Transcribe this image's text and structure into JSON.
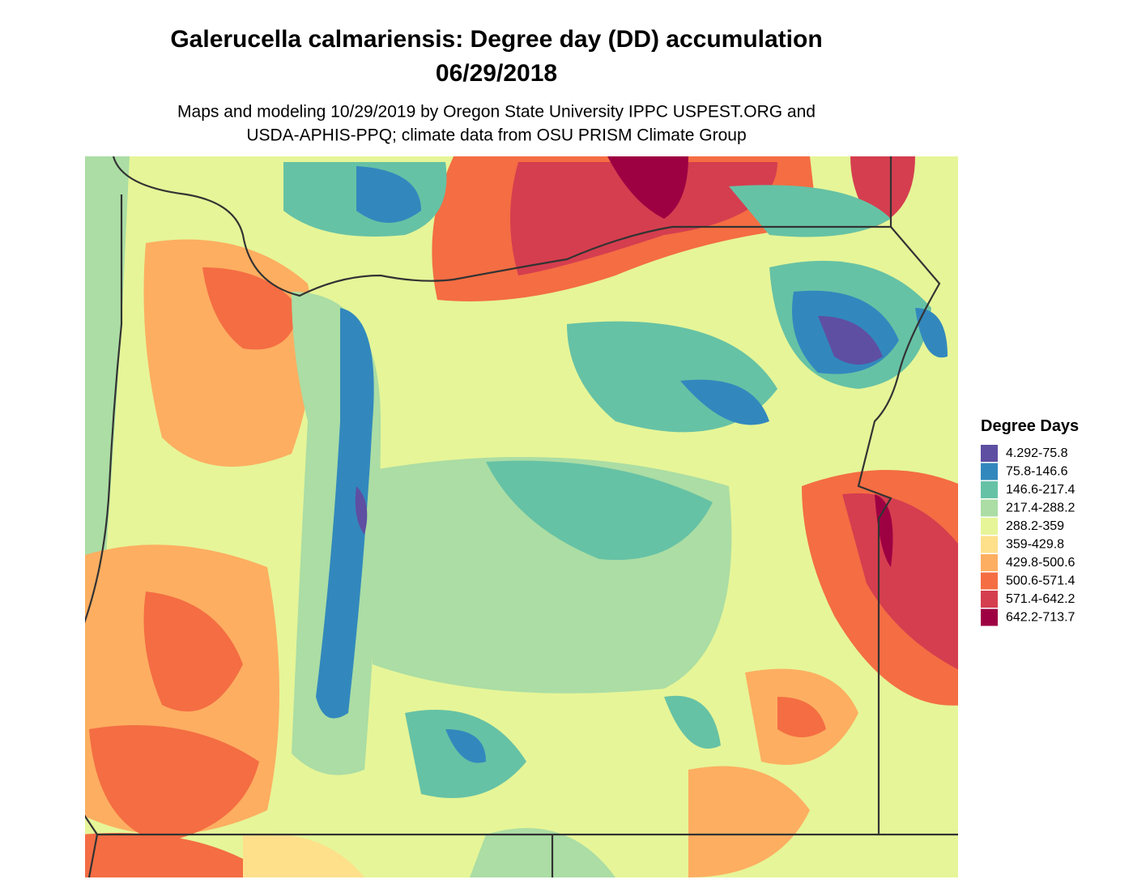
{
  "header": {
    "title_lines": [
      "Galerucella calmariensis: Degree day (DD) accumulation",
      "06/29/2018"
    ],
    "subtitle_lines": [
      "Maps and modeling 10/29/2019 by Oregon State University IPPC USPEST.ORG and",
      "USDA-APHIS-PPQ; climate data from OSU PRISM Climate Group"
    ]
  },
  "legend": {
    "title": "Degree Days",
    "items": [
      {
        "label": "4.292-75.8",
        "color": "#5e4fa2"
      },
      {
        "label": "75.8-146.6",
        "color": "#3288bd"
      },
      {
        "label": "146.6-217.4",
        "color": "#66c2a5"
      },
      {
        "label": "217.4-288.2",
        "color": "#abdda4"
      },
      {
        "label": "288.2-359",
        "color": "#e6f598"
      },
      {
        "label": "359-429.8",
        "color": "#fee08b"
      },
      {
        "label": "429.8-500.6",
        "color": "#fdae61"
      },
      {
        "label": "500.6-571.4",
        "color": "#f46d43"
      },
      {
        "label": "571.4-642.2",
        "color": "#d53e4f"
      },
      {
        "label": "642.2-713.7",
        "color": "#9e0142"
      }
    ]
  }
}
